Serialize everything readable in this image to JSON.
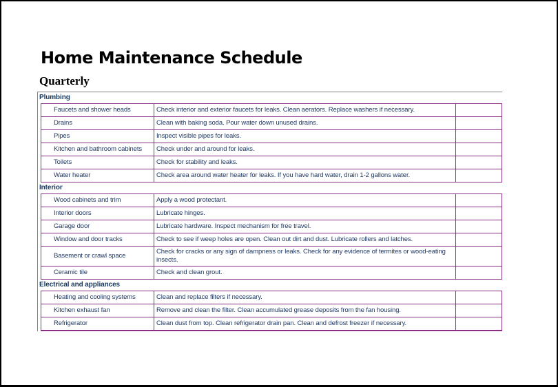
{
  "page": {
    "title": "Home Maintenance Schedule",
    "subtitle": "Quarterly"
  },
  "colors": {
    "row_border": "#8A2B84",
    "table_outline": "#7f7f7f",
    "body_text": "#1F3864",
    "section_text": "#17375D",
    "page_border": "#000000"
  },
  "table": {
    "sections": [
      {
        "name": "Plumbing",
        "rows": [
          {
            "item": "Faucets and shower heads",
            "task": "Check interior and exterior faucets for leaks. Clean aerators. Replace washers if necessary.",
            "status": ""
          },
          {
            "item": "Drains",
            "task": "Clean with baking soda. Pour water down unused drains.",
            "status": ""
          },
          {
            "item": "Pipes",
            "task": "Inspect visible pipes for leaks.",
            "status": ""
          },
          {
            "item": "Kitchen and bathroom cabinets",
            "task": "Check under and around for leaks.",
            "status": ""
          },
          {
            "item": "Toilets",
            "task": "Check for stability and leaks.",
            "status": ""
          },
          {
            "item": "Water heater",
            "task": "Check area around water heater for leaks. If you have hard water, drain 1-2 gallons water.",
            "status": ""
          }
        ]
      },
      {
        "name": "Interior",
        "rows": [
          {
            "item": "Wood cabinets and trim",
            "task": "Apply a wood protectant.",
            "status": ""
          },
          {
            "item": "Interior doors",
            "task": "Lubricate hinges.",
            "status": ""
          },
          {
            "item": "Garage door",
            "task": "Lubricate hardware. Inspect mechanism for free travel.",
            "status": ""
          },
          {
            "item": "Window and door tracks",
            "task": "Check to see if weep holes are open. Clean out dirt and dust. Lubricate rollers and latches.",
            "status": ""
          },
          {
            "item": "Basement or crawl space",
            "task": "Check for cracks or any sign of dampness or leaks. Check for any evidence of termites or wood-eating insects.",
            "status": ""
          },
          {
            "item": "Ceramic tile",
            "task": "Check and clean grout.",
            "status": ""
          }
        ]
      },
      {
        "name": "Electrical and appliances",
        "rows": [
          {
            "item": "Heating and cooling systems",
            "task": "Clean and replace filters if necessary.",
            "status": ""
          },
          {
            "item": "Kitchen exhaust fan",
            "task": "Remove and clean the filter. Clean accumulated grease deposits from the fan housing.",
            "status": ""
          },
          {
            "item": "Refrigerator",
            "task": "Clean dust from top. Clean refrigerator drain pan. Clean and defrost freezer if necessary.",
            "status": ""
          }
        ]
      }
    ]
  }
}
